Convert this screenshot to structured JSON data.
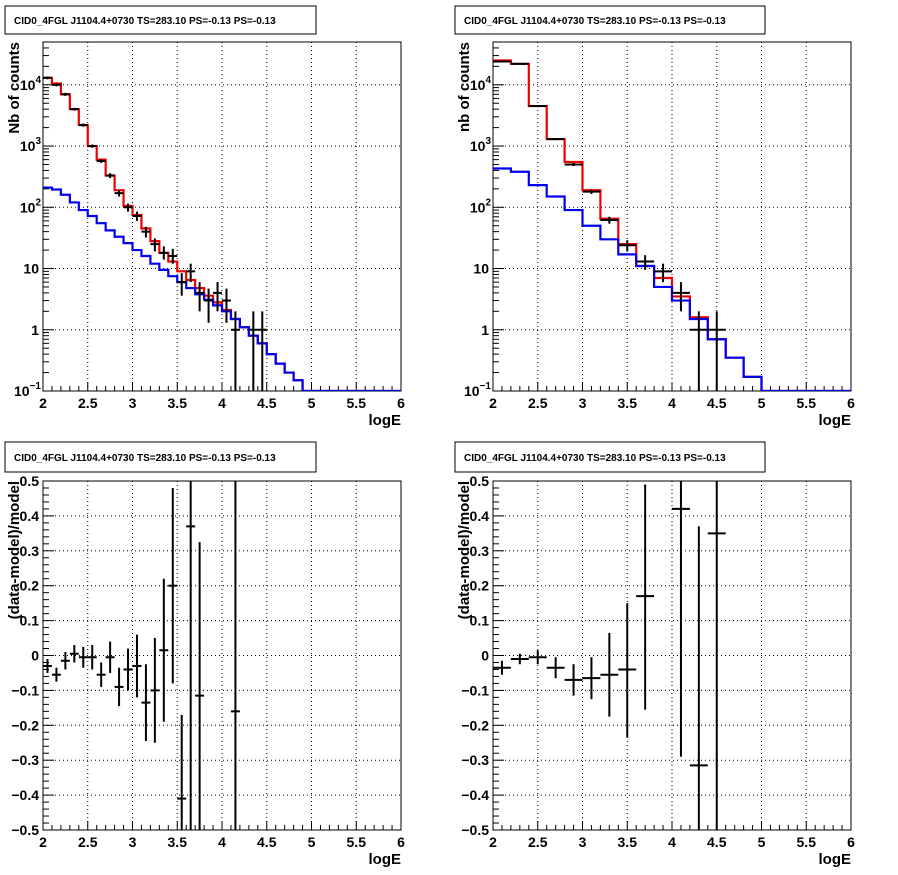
{
  "panel_title": "CID0_4FGL J1104.4+0730 TS=283.10 PS=-0.13 PS=-0.13",
  "colors": {
    "data": "#000000",
    "total_model": "#ee0000",
    "source_model": "#0000ee"
  },
  "chart_data": [
    {
      "type": "line",
      "title": "CID0_4FGL J1104.4+0730 TS=283.10 PS=-0.13 PS=-0.13",
      "xlabel": "logE",
      "ylabel": "Nb of counts",
      "xlim": [
        2,
        6
      ],
      "ylim": [
        0.1,
        50000
      ],
      "yscale": "log",
      "grid": true,
      "x_ticks": [
        "2",
        "2.5",
        "3",
        "3.5",
        "4",
        "4.5",
        "5",
        "5.5",
        "6"
      ],
      "y_ticks": [
        {
          "value": 0.1,
          "label": "10",
          "exp": "−1"
        },
        {
          "value": 1,
          "label": "1",
          "exp": ""
        },
        {
          "value": 10,
          "label": "10",
          "exp": ""
        },
        {
          "value": 100,
          "label": "10",
          "exp": "2"
        },
        {
          "value": 1000,
          "label": "10",
          "exp": "3"
        },
        {
          "value": 10000,
          "label": "10",
          "exp": "4"
        }
      ],
      "bin_edges": [
        2,
        2.1,
        2.2,
        2.3,
        2.4,
        2.5,
        2.6,
        2.7,
        2.8,
        2.9,
        3,
        3.1,
        3.2,
        3.3,
        3.4,
        3.5,
        3.6,
        3.7,
        3.8,
        3.9,
        4,
        4.1,
        4.2,
        4.3,
        4.4,
        4.5,
        4.6,
        4.7,
        4.8,
        4.9,
        5,
        5.1,
        5.2,
        5.3,
        5.4,
        5.5,
        5.6,
        5.7,
        5.8,
        5.9,
        6
      ],
      "series": [
        {
          "kind": "step",
          "color": "#ee0000",
          "values": [
            13000,
            10500,
            7000,
            4000,
            2200,
            1000,
            600,
            330,
            190,
            105,
            75,
            45,
            28,
            18,
            13,
            9,
            6.5,
            4.8,
            3.6,
            2.8,
            2.1,
            1.5,
            1.1,
            0.8,
            0.6,
            0.4,
            0.28,
            0.2,
            0.15,
            0.1,
            0.1,
            0.1,
            0.1,
            0.1,
            0.1,
            0.1,
            0.1,
            0.1,
            0.1,
            0.1
          ]
        },
        {
          "kind": "step",
          "color": "#0000ee",
          "values": [
            210,
            195,
            160,
            120,
            90,
            72,
            55,
            42,
            33,
            26,
            20,
            16,
            12,
            9.5,
            7.5,
            6,
            4.8,
            3.8,
            3.1,
            2.5,
            2,
            1.5,
            1.1,
            0.8,
            0.6,
            0.4,
            0.28,
            0.2,
            0.15,
            0.1,
            0.1,
            0.1,
            0.1,
            0.1,
            0.1,
            0.1,
            0.1,
            0.1,
            0.1,
            0.1
          ]
        },
        {
          "kind": "points",
          "color": "#000000",
          "points": [
            {
              "x": 2.05,
              "y": 13000,
              "ylo": 12300,
              "yhi": 13700
            },
            {
              "x": 2.15,
              "y": 10000,
              "ylo": 9400,
              "yhi": 10600
            },
            {
              "x": 2.25,
              "y": 7000,
              "ylo": 6600,
              "yhi": 7400
            },
            {
              "x": 2.35,
              "y": 4000,
              "ylo": 3800,
              "yhi": 4200
            },
            {
              "x": 2.45,
              "y": 2200,
              "ylo": 2070,
              "yhi": 2330
            },
            {
              "x": 2.55,
              "y": 1000,
              "ylo": 940,
              "yhi": 1060
            },
            {
              "x": 2.65,
              "y": 570,
              "ylo": 530,
              "yhi": 610
            },
            {
              "x": 2.75,
              "y": 330,
              "ylo": 300,
              "yhi": 360
            },
            {
              "x": 2.85,
              "y": 170,
              "ylo": 150,
              "yhi": 190
            },
            {
              "x": 2.95,
              "y": 100,
              "ylo": 85,
              "yhi": 115
            },
            {
              "x": 3.05,
              "y": 72,
              "ylo": 60,
              "yhi": 85
            },
            {
              "x": 3.15,
              "y": 40,
              "ylo": 32,
              "yhi": 48
            },
            {
              "x": 3.25,
              "y": 25,
              "ylo": 19,
              "yhi": 31
            },
            {
              "x": 3.35,
              "y": 18,
              "ylo": 14,
              "yhi": 23
            },
            {
              "x": 3.45,
              "y": 16,
              "ylo": 12,
              "yhi": 21
            },
            {
              "x": 3.55,
              "y": 6,
              "ylo": 3.6,
              "yhi": 8.4
            },
            {
              "x": 3.65,
              "y": 9,
              "ylo": 6,
              "yhi": 12
            },
            {
              "x": 3.75,
              "y": 4,
              "ylo": 2,
              "yhi": 6
            },
            {
              "x": 3.85,
              "y": 3,
              "ylo": 1.3,
              "yhi": 4.7
            },
            {
              "x": 3.95,
              "y": 4,
              "ylo": 2,
              "yhi": 6
            },
            {
              "x": 4.05,
              "y": 3,
              "ylo": 1.3,
              "yhi": 4.7
            },
            {
              "x": 4.15,
              "y": 1,
              "ylo": 0.1,
              "yhi": 2
            },
            {
              "x": 4.35,
              "y": 1,
              "ylo": 0.1,
              "yhi": 2
            },
            {
              "x": 4.45,
              "y": 1,
              "ylo": 0.1,
              "yhi": 2
            }
          ]
        }
      ]
    },
    {
      "type": "line",
      "title": "CID0_4FGL J1104.4+0730 TS=283.10 PS=-0.13 PS=-0.13",
      "xlabel": "logE",
      "ylabel": "nb of counts",
      "xlim": [
        2,
        6
      ],
      "ylim": [
        0.1,
        50000
      ],
      "yscale": "log",
      "grid": true,
      "x_ticks": [
        "2",
        "2.5",
        "3",
        "3.5",
        "4",
        "4.5",
        "5",
        "5.5",
        "6"
      ],
      "y_ticks": [
        {
          "value": 0.1,
          "label": "10",
          "exp": "−1"
        },
        {
          "value": 1,
          "label": "1",
          "exp": ""
        },
        {
          "value": 10,
          "label": "10",
          "exp": ""
        },
        {
          "value": 100,
          "label": "10",
          "exp": "2"
        },
        {
          "value": 1000,
          "label": "10",
          "exp": "3"
        },
        {
          "value": 10000,
          "label": "10",
          "exp": "4"
        }
      ],
      "bin_edges": [
        2,
        2.2,
        2.4,
        2.6,
        2.8,
        3,
        3.2,
        3.4,
        3.6,
        3.8,
        4,
        4.2,
        4.4,
        4.6,
        4.8,
        5,
        5.2,
        5.4,
        5.6,
        5.8,
        6
      ],
      "series": [
        {
          "kind": "step",
          "color": "#ee0000",
          "values": [
            25000,
            22000,
            4500,
            1300,
            550,
            190,
            65,
            25,
            11,
            7,
            3.5,
            1.6,
            0.7,
            0.35,
            0.17,
            0.1,
            0.1,
            0.1,
            0.1,
            0.1
          ]
        },
        {
          "kind": "step",
          "color": "#0000ee",
          "values": [
            430,
            380,
            230,
            150,
            90,
            50,
            30,
            17,
            11,
            5,
            3,
            1.5,
            0.7,
            0.35,
            0.17,
            0.1,
            0.1,
            0.1,
            0.1,
            0.1
          ]
        },
        {
          "kind": "points",
          "color": "#000000",
          "points": [
            {
              "x": 2.1,
              "y": 24000,
              "ylo": 23500,
              "yhi": 24500
            },
            {
              "x": 2.3,
              "y": 22000,
              "ylo": 21500,
              "yhi": 22500
            },
            {
              "x": 2.5,
              "y": 4500,
              "ylo": 4400,
              "yhi": 4600
            },
            {
              "x": 2.7,
              "y": 1300,
              "ylo": 1250,
              "yhi": 1350
            },
            {
              "x": 2.9,
              "y": 500,
              "ylo": 470,
              "yhi": 530
            },
            {
              "x": 3.1,
              "y": 180,
              "ylo": 165,
              "yhi": 195
            },
            {
              "x": 3.3,
              "y": 62,
              "ylo": 54,
              "yhi": 70
            },
            {
              "x": 3.5,
              "y": 24,
              "ylo": 19,
              "yhi": 29
            },
            {
              "x": 3.7,
              "y": 13,
              "ylo": 9.5,
              "yhi": 16.5
            },
            {
              "x": 3.9,
              "y": 9,
              "ylo": 6,
              "yhi": 12
            },
            {
              "x": 4.1,
              "y": 4,
              "ylo": 2,
              "yhi": 6
            },
            {
              "x": 4.3,
              "y": 1,
              "ylo": 0.1,
              "yhi": 2
            },
            {
              "x": 4.5,
              "y": 1,
              "ylo": 0.1,
              "yhi": 2
            }
          ]
        }
      ]
    },
    {
      "type": "scatter",
      "title": "CID0_4FGL J1104.4+0730 TS=283.10 PS=-0.13 PS=-0.13",
      "xlabel": "logE",
      "ylabel": "(data-model)/model",
      "xlim": [
        2,
        6
      ],
      "ylim": [
        -0.5,
        0.5
      ],
      "grid": true,
      "x_ticks": [
        "2",
        "2.5",
        "3",
        "3.5",
        "4",
        "4.5",
        "5",
        "5.5",
        "6"
      ],
      "y_ticks": [
        {
          "value": -0.5,
          "label": "−0.5"
        },
        {
          "value": -0.4,
          "label": "−0.4"
        },
        {
          "value": -0.3,
          "label": "−0.3"
        },
        {
          "value": -0.2,
          "label": "−0.2"
        },
        {
          "value": -0.1,
          "label": "−0.1"
        },
        {
          "value": 0,
          "label": "0"
        },
        {
          "value": 0.1,
          "label": "0.1"
        },
        {
          "value": 0.2,
          "label": "0.2"
        },
        {
          "value": 0.3,
          "label": "0.3"
        },
        {
          "value": 0.4,
          "label": "0.4"
        },
        {
          "value": 0.5,
          "label": "0.5"
        }
      ],
      "series": [
        {
          "kind": "points",
          "color": "#000000",
          "xhalf": 0.05,
          "points": [
            {
              "x": 2.05,
              "y": -0.03,
              "ylo": -0.05,
              "yhi": -0.01
            },
            {
              "x": 2.15,
              "y": -0.055,
              "ylo": -0.075,
              "yhi": -0.035
            },
            {
              "x": 2.25,
              "y": -0.015,
              "ylo": -0.04,
              "yhi": 0.01
            },
            {
              "x": 2.35,
              "y": 0.005,
              "ylo": -0.02,
              "yhi": 0.03
            },
            {
              "x": 2.45,
              "y": -0.005,
              "ylo": -0.035,
              "yhi": 0.025
            },
            {
              "x": 2.55,
              "y": -0.005,
              "ylo": -0.04,
              "yhi": 0.03
            },
            {
              "x": 2.65,
              "y": -0.055,
              "ylo": -0.09,
              "yhi": -0.02
            },
            {
              "x": 2.75,
              "y": -0.005,
              "ylo": -0.05,
              "yhi": 0.04
            },
            {
              "x": 2.85,
              "y": -0.09,
              "ylo": -0.145,
              "yhi": -0.035
            },
            {
              "x": 2.95,
              "y": -0.04,
              "ylo": -0.1,
              "yhi": 0.02
            },
            {
              "x": 3.05,
              "y": -0.03,
              "ylo": -0.12,
              "yhi": 0.06
            },
            {
              "x": 3.15,
              "y": -0.135,
              "ylo": -0.245,
              "yhi": -0.025
            },
            {
              "x": 3.25,
              "y": -0.1,
              "ylo": -0.25,
              "yhi": 0.05
            },
            {
              "x": 3.35,
              "y": 0.015,
              "ylo": -0.19,
              "yhi": 0.22
            },
            {
              "x": 3.45,
              "y": 0.2,
              "ylo": -0.08,
              "yhi": 0.48
            },
            {
              "x": 3.55,
              "y": -0.41,
              "ylo": -0.5,
              "yhi": -0.17
            },
            {
              "x": 3.65,
              "y": 0.37,
              "ylo": -0.5,
              "yhi": 0.5
            },
            {
              "x": 3.75,
              "y": -0.115,
              "ylo": -0.5,
              "yhi": 0.325
            },
            {
              "x": 4.15,
              "y": -0.16,
              "ylo": -0.5,
              "yhi": 0.5
            }
          ]
        }
      ]
    },
    {
      "type": "scatter",
      "title": "CID0_4FGL J1104.4+0730 TS=283.10 PS=-0.13 PS=-0.13",
      "xlabel": "logE",
      "ylabel": "(data-model)/model",
      "xlim": [
        2,
        6
      ],
      "ylim": [
        -0.5,
        0.5
      ],
      "grid": true,
      "x_ticks": [
        "2",
        "2.5",
        "3",
        "3.5",
        "4",
        "4.5",
        "5",
        "5.5",
        "6"
      ],
      "y_ticks": [
        {
          "value": -0.5,
          "label": "−0.5"
        },
        {
          "value": -0.4,
          "label": "−0.4"
        },
        {
          "value": -0.3,
          "label": "−0.3"
        },
        {
          "value": -0.2,
          "label": "−0.2"
        },
        {
          "value": -0.1,
          "label": "−0.1"
        },
        {
          "value": 0,
          "label": "0"
        },
        {
          "value": 0.1,
          "label": "0.1"
        },
        {
          "value": 0.2,
          "label": "0.2"
        },
        {
          "value": 0.3,
          "label": "0.3"
        },
        {
          "value": 0.4,
          "label": "0.4"
        },
        {
          "value": 0.5,
          "label": "0.5"
        }
      ],
      "series": [
        {
          "kind": "points",
          "color": "#000000",
          "xhalf": 0.1,
          "points": [
            {
              "x": 2.1,
              "y": -0.035,
              "ylo": -0.055,
              "yhi": -0.015
            },
            {
              "x": 2.3,
              "y": -0.01,
              "ylo": -0.025,
              "yhi": 0.005
            },
            {
              "x": 2.5,
              "y": -0.005,
              "ylo": -0.025,
              "yhi": 0.015
            },
            {
              "x": 2.7,
              "y": -0.035,
              "ylo": -0.065,
              "yhi": -0.005
            },
            {
              "x": 2.9,
              "y": -0.07,
              "ylo": -0.115,
              "yhi": -0.025
            },
            {
              "x": 3.1,
              "y": -0.065,
              "ylo": -0.125,
              "yhi": -0.005
            },
            {
              "x": 3.3,
              "y": -0.055,
              "ylo": -0.175,
              "yhi": 0.065
            },
            {
              "x": 3.5,
              "y": -0.04,
              "ylo": -0.235,
              "yhi": 0.15
            },
            {
              "x": 3.7,
              "y": 0.17,
              "ylo": -0.155,
              "yhi": 0.49
            },
            {
              "x": 4.1,
              "y": 0.42,
              "ylo": -0.29,
              "yhi": 0.5
            },
            {
              "x": 4.3,
              "y": -0.315,
              "ylo": -0.5,
              "yhi": 0.37
            },
            {
              "x": 4.5,
              "y": 0.35,
              "ylo": -0.5,
              "yhi": 0.5
            }
          ]
        }
      ]
    }
  ]
}
